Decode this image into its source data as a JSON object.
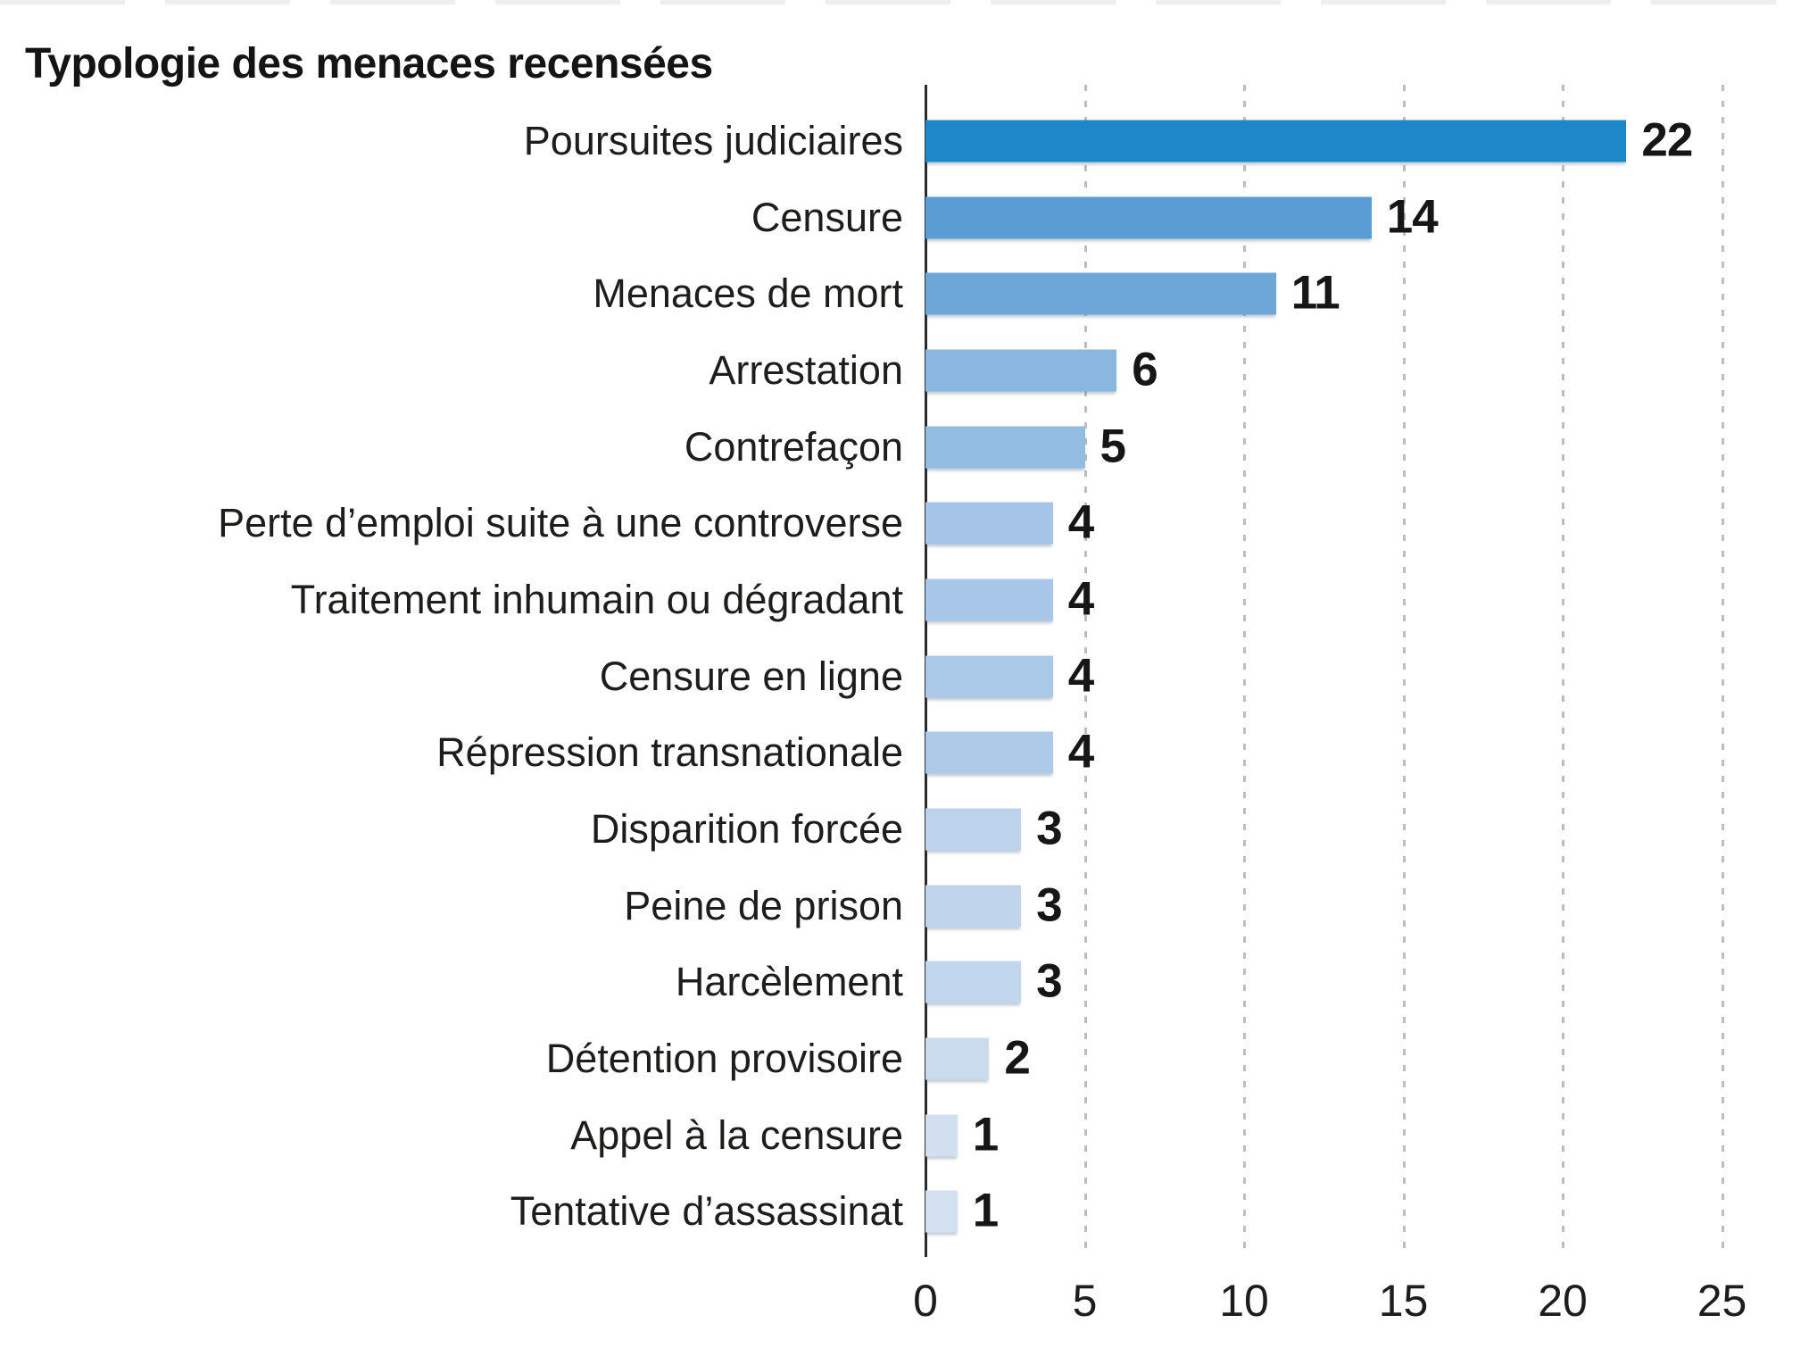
{
  "chart_data": {
    "type": "bar",
    "orientation": "horizontal",
    "title": "Typologie des menaces recensées",
    "categories": [
      "Poursuites judiciaires",
      "Censure",
      "Menaces de mort",
      "Arrestation",
      "Contrefaçon",
      "Perte d’emploi suite à une controverse",
      "Traitement inhumain ou dégradant",
      "Censure en ligne",
      "Répression transnationale",
      "Disparition forcée",
      "Peine de prison",
      "Harcèlement",
      "Détention provisoire",
      "Appel à la censure",
      "Tentative d’assassinat"
    ],
    "values": [
      22,
      14,
      11,
      6,
      5,
      4,
      4,
      4,
      4,
      3,
      3,
      3,
      2,
      1,
      1
    ],
    "bar_colors": [
      "#1c87c9",
      "#5a9dd4",
      "#6ca7d8",
      "#8ab7e0",
      "#93bce2",
      "#a6c4e7",
      "#a8c6e7",
      "#aac8e8",
      "#adcae9",
      "#bdd3ec",
      "#c0d5ec",
      "#c2d6ed",
      "#cbdbee",
      "#d1dff0",
      "#d3e0f0"
    ],
    "x_ticks": [
      "0",
      "5",
      "10",
      "15",
      "20",
      "25"
    ],
    "xlim": [
      0,
      25
    ],
    "grid": "vertical-dashed",
    "legend": "none",
    "value_label_style": "bold black at bar end",
    "axis_color": "#2b2b2b",
    "gridline_color": "#bdbdbd",
    "text_color": "#1d1d1b"
  }
}
